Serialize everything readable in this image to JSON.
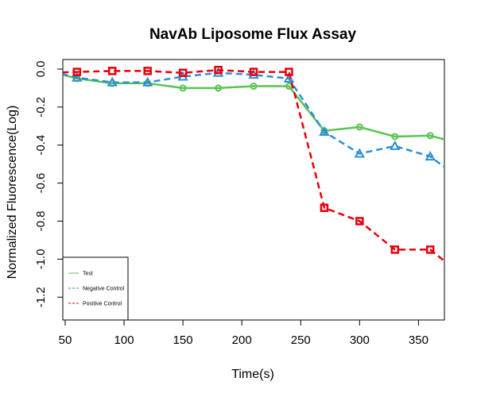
{
  "chart_data": {
    "type": "line",
    "title": "NavAb Liposome Flux Assay",
    "xlabel": "Time(s)",
    "ylabel": "Normalized Fluorescence(Log)",
    "xlim": [
      48,
      372
    ],
    "ylim": [
      -1.32,
      0.05
    ],
    "x_ticks": [
      50,
      100,
      150,
      200,
      250,
      300,
      350
    ],
    "y_ticks": [
      0.0,
      -0.2,
      -0.4,
      -0.6,
      -0.8,
      -1.0,
      -1.2
    ],
    "x_tick_labels": [
      "50",
      "100",
      "150",
      "200",
      "250",
      "300",
      "350"
    ],
    "y_tick_labels": [
      "0.0",
      "-0.2",
      "-0.4",
      "-0.6",
      "-0.8",
      "-1.0",
      "-1.2"
    ],
    "grid": false,
    "legend_position": "bottom-left",
    "series": [
      {
        "name": "Test",
        "color": "#5bc452",
        "line_style": "solid",
        "marker": "circle",
        "x": [
          30,
          60,
          90,
          120,
          150,
          180,
          210,
          240,
          270,
          300,
          330,
          360,
          390
        ],
        "y": [
          0.0,
          -0.05,
          -0.075,
          -0.075,
          -0.1,
          -0.1,
          -0.09,
          -0.09,
          -0.325,
          -0.305,
          -0.355,
          -0.35,
          -0.4
        ]
      },
      {
        "name": "Negative Control",
        "color": "#2c8fd6",
        "line_style": "dashed",
        "marker": "triangle",
        "x": [
          30,
          60,
          90,
          120,
          150,
          180,
          210,
          240,
          270,
          300,
          330,
          360,
          390
        ],
        "y": [
          0.0,
          -0.045,
          -0.07,
          -0.07,
          -0.04,
          -0.02,
          -0.03,
          -0.05,
          -0.33,
          -0.445,
          -0.405,
          -0.46,
          -0.6
        ]
      },
      {
        "name": "Positive Control",
        "color": "#e8000b",
        "line_style": "dashed",
        "marker": "square",
        "x": [
          30,
          60,
          90,
          120,
          150,
          180,
          210,
          240,
          270,
          300,
          330,
          360,
          390
        ],
        "y": [
          -0.02,
          -0.015,
          -0.01,
          -0.01,
          -0.02,
          -0.005,
          -0.015,
          -0.015,
          -0.73,
          -0.8,
          -0.95,
          -0.95,
          -1.1
        ]
      }
    ]
  }
}
